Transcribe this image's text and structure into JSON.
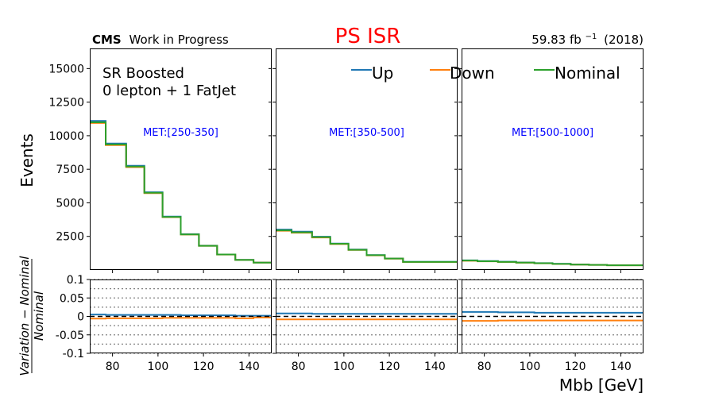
{
  "header": {
    "experiment": "CMS",
    "status": "Work in Progress",
    "title": "PS ISR",
    "lumi_value": "59.83 fb",
    "lumi_exp": "−1",
    "lumi_year": "(2018)"
  },
  "annotation": {
    "line1": "SR Boosted",
    "line2": "0 lepton + 1 FatJet"
  },
  "axes": {
    "ylabel": "Events",
    "xlabel": "Mbb [GeV]",
    "ratio_numerator": "Variation − Nominal",
    "ratio_denominator": "Nominal"
  },
  "colors": {
    "Up": "#1f77b4",
    "Down": "#ff7f0e",
    "Nominal": "#2ca02c",
    "met": "#0000ff",
    "title": "#ff0000"
  },
  "chart_data": {
    "type": "line",
    "style": "step histogram with ratio panel",
    "bin_edges": [
      70,
      77,
      86,
      94,
      102,
      110,
      118,
      126,
      134,
      142,
      150
    ],
    "xlim": [
      70,
      150
    ],
    "ylim": [
      0,
      16500
    ],
    "ratio_ylim": [
      -0.1,
      0.1
    ],
    "x_ticks": [
      "80",
      "100",
      "120",
      "140"
    ],
    "y_ticks": [
      "2500",
      "5000",
      "7500",
      "10000",
      "12500",
      "15000"
    ],
    "ratio_ticks": [
      "0.1",
      "0.05",
      "0",
      "-0.05",
      "-0.1"
    ],
    "legend": [
      "Up",
      "Down",
      "Nominal"
    ],
    "panels": [
      {
        "label": "MET:[250-350]",
        "nominal": [
          11000,
          9350,
          7700,
          5750,
          3950,
          2650,
          1800,
          1150,
          750,
          550
        ],
        "up": [
          11100,
          9420,
          7760,
          5790,
          3980,
          2670,
          1810,
          1155,
          752,
          552
        ],
        "down": [
          10950,
          9300,
          7660,
          5720,
          3930,
          2640,
          1795,
          1145,
          745,
          545
        ],
        "ratio_up": [
          0.005,
          0.004,
          0.004,
          0.004,
          0.004,
          0.003,
          0.003,
          0.003,
          0.002,
          0.002
        ],
        "ratio_down": [
          -0.006,
          -0.005,
          -0.005,
          -0.005,
          -0.004,
          -0.004,
          -0.004,
          -0.004,
          -0.005,
          -0.003
        ]
      },
      {
        "label": "MET:[350-500]",
        "nominal": [
          2950,
          2800,
          2450,
          1950,
          1500,
          1100,
          850,
          600,
          600,
          600
        ],
        "up": [
          3010,
          2850,
          2480,
          1970,
          1520,
          1110,
          855,
          605,
          605,
          605
        ],
        "down": [
          2920,
          2770,
          2420,
          1930,
          1490,
          1090,
          845,
          595,
          595,
          595
        ],
        "ratio_up": [
          0.008,
          0.008,
          0.007,
          0.007,
          0.007,
          0.007,
          0.007,
          0.007,
          0.007,
          0.007
        ],
        "ratio_down": [
          -0.008,
          -0.008,
          -0.008,
          -0.008,
          -0.008,
          -0.008,
          -0.008,
          -0.008,
          -0.008,
          -0.008
        ]
      },
      {
        "label": "MET:[500-1000]",
        "nominal": [
          700,
          650,
          600,
          550,
          500,
          450,
          400,
          380,
          350,
          350
        ],
        "up": [
          720,
          665,
          612,
          560,
          508,
          457,
          406,
          385,
          355,
          355
        ],
        "down": [
          690,
          640,
          592,
          542,
          494,
          444,
          396,
          376,
          346,
          346
        ],
        "ratio_up": [
          0.012,
          0.012,
          0.011,
          0.011,
          0.01,
          0.01,
          0.01,
          0.01,
          0.01,
          0.01
        ],
        "ratio_down": [
          -0.012,
          -0.012,
          -0.011,
          -0.011,
          -0.011,
          -0.011,
          -0.011,
          -0.011,
          -0.011,
          -0.011
        ]
      }
    ]
  }
}
